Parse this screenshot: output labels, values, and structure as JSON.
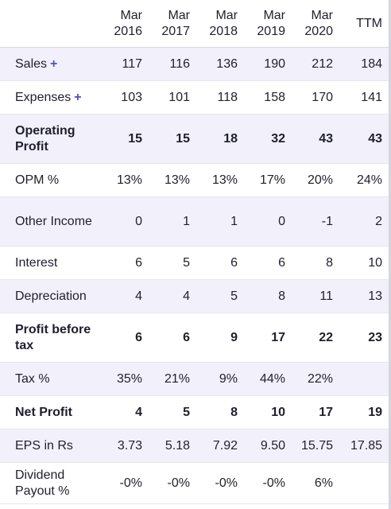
{
  "header": {
    "periods": [
      {
        "line1": "Mar",
        "line2": "2016"
      },
      {
        "line1": "Mar",
        "line2": "2017"
      },
      {
        "line1": "Mar",
        "line2": "2018"
      },
      {
        "line1": "Mar",
        "line2": "2019"
      },
      {
        "line1": "Mar",
        "line2": "2020"
      },
      {
        "line1": "TTM",
        "line2": ""
      }
    ]
  },
  "rows": [
    {
      "label": "Sales",
      "expand": "+",
      "values": [
        "117",
        "116",
        "136",
        "190",
        "212",
        "184"
      ]
    },
    {
      "label": "Expenses",
      "expand": "+",
      "values": [
        "103",
        "101",
        "118",
        "158",
        "170",
        "141"
      ]
    },
    {
      "label": "Operating Profit",
      "values": [
        "15",
        "15",
        "18",
        "32",
        "43",
        "43"
      ]
    },
    {
      "label": "OPM %",
      "values": [
        "13%",
        "13%",
        "13%",
        "17%",
        "20%",
        "24%"
      ]
    },
    {
      "label": "Other Income",
      "values": [
        "0",
        "1",
        "1",
        "0",
        "-1",
        "2"
      ]
    },
    {
      "label": "Interest",
      "values": [
        "6",
        "5",
        "6",
        "6",
        "8",
        "10"
      ]
    },
    {
      "label": "Depreciation",
      "values": [
        "4",
        "4",
        "5",
        "8",
        "11",
        "13"
      ]
    },
    {
      "label": "Profit before tax",
      "values": [
        "6",
        "6",
        "9",
        "17",
        "22",
        "23"
      ]
    },
    {
      "label": "Tax %",
      "values": [
        "35%",
        "21%",
        "9%",
        "44%",
        "22%",
        ""
      ]
    },
    {
      "label": "Net Profit",
      "values": [
        "4",
        "5",
        "8",
        "10",
        "17",
        "19"
      ]
    },
    {
      "label": "EPS in Rs",
      "values": [
        "3.73",
        "5.18",
        "7.92",
        "9.50",
        "15.75",
        "17.85"
      ]
    },
    {
      "label": "Dividend Payout %",
      "values": [
        "-0%",
        "-0%",
        "-0%",
        "-0%",
        "6%",
        ""
      ]
    }
  ]
}
